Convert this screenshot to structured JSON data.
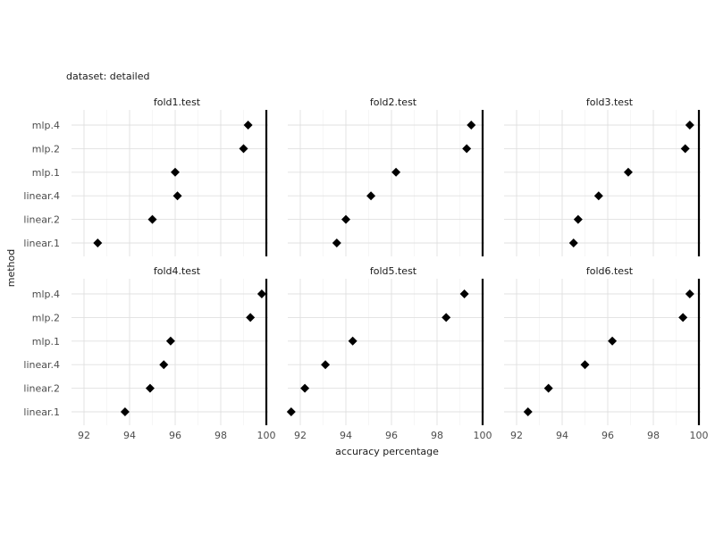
{
  "chart_data": {
    "type": "scatter",
    "subtitle": "dataset: detailed",
    "xlabel": "accuracy percentage",
    "ylabel": "method",
    "xlim": [
      91,
      100.5
    ],
    "x_ticks": [
      92,
      94,
      96,
      98,
      100
    ],
    "reference_line_x": 100,
    "categories": [
      "linear.1",
      "linear.2",
      "linear.4",
      "mlp.1",
      "mlp.2",
      "mlp.4"
    ],
    "marker": "diamond",
    "marker_color": "#000000",
    "grid": true,
    "panels": [
      {
        "name": "fold1.test",
        "values": [
          92.6,
          95.0,
          96.1,
          96.0,
          99.0,
          99.2
        ]
      },
      {
        "name": "fold2.test",
        "values": [
          93.6,
          94.0,
          95.1,
          96.2,
          99.3,
          99.5
        ]
      },
      {
        "name": "fold3.test",
        "values": [
          94.5,
          94.7,
          95.6,
          96.9,
          99.4,
          99.6
        ]
      },
      {
        "name": "fold4.test",
        "values": [
          93.8,
          94.9,
          95.5,
          95.8,
          99.3,
          99.8
        ]
      },
      {
        "name": "fold5.test",
        "values": [
          91.6,
          92.2,
          93.1,
          94.3,
          98.4,
          99.2
        ]
      },
      {
        "name": "fold6.test",
        "values": [
          92.5,
          93.4,
          95.0,
          96.2,
          99.3,
          99.6
        ]
      }
    ]
  }
}
